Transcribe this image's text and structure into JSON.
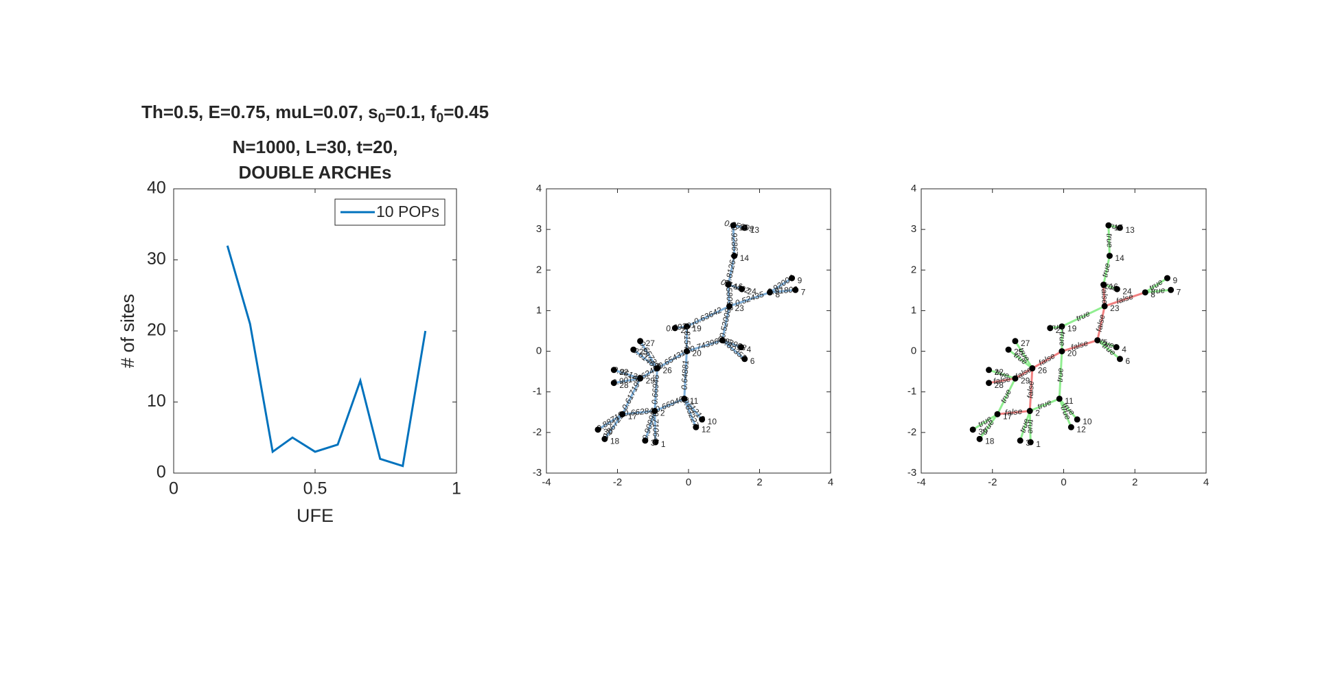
{
  "chart_data": [
    {
      "type": "line",
      "title": {
        "line1": [
          {
            "text": "Th=0.5, E=0.75, muL=0.07, s"
          },
          {
            "text": "0",
            "sub": true
          },
          {
            "text": "=0.1, f"
          },
          {
            "text": "0",
            "sub": true
          },
          {
            "text": "=0.45"
          }
        ],
        "line2": "N=1000, L=30, t=20,",
        "line3": "DOUBLE ARCHEs"
      },
      "x_label": "UFE",
      "y_label": "# of sites",
      "x": [
        0.19,
        0.27,
        0.35,
        0.42,
        0.5,
        0.58,
        0.66,
        0.73,
        0.81,
        0.89
      ],
      "series": [
        {
          "name": "10 POPs",
          "color": "#0072bd",
          "values": [
            32,
            21,
            3,
            5,
            3,
            4,
            13,
            2,
            1,
            20
          ]
        }
      ],
      "xlim": [
        0,
        1
      ],
      "xticks": [
        0,
        0.5,
        1
      ],
      "ylim": [
        0,
        40
      ],
      "yticks": [
        0,
        10,
        20,
        30,
        40
      ],
      "legend": "top-right"
    },
    {
      "type": "graph",
      "edge_color": "#7fb0da",
      "nodes": [
        1,
        2,
        3,
        4,
        5,
        6,
        7,
        8,
        9,
        10,
        11,
        12,
        13,
        14,
        15,
        16,
        17,
        18,
        19,
        20,
        21,
        22,
        23,
        24,
        25,
        26,
        27,
        28,
        29,
        30
      ],
      "x": [
        -0.93,
        -0.95,
        -1.22,
        1.48,
        0.95,
        1.58,
        3.01,
        2.29,
        2.91,
        0.38,
        -0.12,
        0.21,
        1.58,
        1.29,
        1.26,
        1.12,
        -1.86,
        -2.36,
        -0.05,
        -0.05,
        -0.38,
        -2.1,
        1.15,
        1.5,
        -1.55,
        -0.88,
        -1.36,
        -2.1,
        -1.36,
        -2.55
      ],
      "y": [
        -2.24,
        -1.47,
        -2.2,
        0.1,
        0.27,
        -0.19,
        1.51,
        1.45,
        1.8,
        -1.68,
        -1.17,
        -1.87,
        3.04,
        2.35,
        3.1,
        1.64,
        -1.55,
        -2.16,
        0.61,
        0,
        0.57,
        -0.46,
        1.11,
        1.53,
        0.04,
        -0.42,
        0.25,
        -0.78,
        -0.67,
        -1.93
      ],
      "edges": [
        [
          14,
          12
        ],
        [
          14,
          13
        ],
        [
          13,
          15
        ],
        [
          15,
          22
        ],
        [
          15,
          23
        ],
        [
          22,
          7
        ],
        [
          7,
          8
        ],
        [
          7,
          6
        ],
        [
          22,
          18
        ],
        [
          22,
          4
        ],
        [
          19,
          4
        ],
        [
          4,
          3
        ],
        [
          4,
          5
        ],
        [
          18,
          20
        ],
        [
          18,
          19
        ],
        [
          19,
          25
        ],
        [
          19,
          10
        ],
        [
          25,
          26
        ],
        [
          25,
          24
        ],
        [
          25,
          28
        ],
        [
          25,
          1
        ],
        [
          28,
          21
        ],
        [
          28,
          27
        ],
        [
          28,
          16
        ],
        [
          1,
          16
        ],
        [
          16,
          29
        ],
        [
          16,
          17
        ],
        [
          1,
          2
        ],
        [
          1,
          0
        ],
        [
          10,
          9
        ],
        [
          10,
          11
        ],
        [
          1,
          10
        ]
      ],
      "edge_labels": [
        0.65309,
        0.92867,
        0.81264,
        0.58093,
        0.64492,
        0.52435,
        0.92004,
        0.91806,
        0.63642,
        0.52008,
        0.74396,
        0.62903,
        0.60352,
        0.69201,
        0.81549,
        0.65431,
        0.64881,
        0.65739,
        0.61467,
        0.62409,
        0.66946,
        0.96128,
        0.90152,
        0.61719,
        0.66284,
        0.88713,
        0.86721,
        0.90998,
        0.71064,
        0.71213,
        0.63227,
        0.66946
      ],
      "xlim": [
        -4,
        4
      ],
      "xticks": [
        -4,
        -2,
        0,
        2,
        4
      ],
      "ylim": [
        -3,
        4
      ],
      "yticks": [
        -3,
        -2,
        -1,
        0,
        1,
        2,
        3,
        4
      ]
    },
    {
      "type": "graph",
      "edge_color": {
        "true": "#90ee90",
        "false": "#f08080"
      },
      "nodes": [
        1,
        2,
        3,
        4,
        5,
        6,
        7,
        8,
        9,
        10,
        11,
        12,
        13,
        14,
        15,
        16,
        17,
        18,
        19,
        20,
        21,
        22,
        23,
        24,
        25,
        26,
        27,
        28,
        29,
        30
      ],
      "x": [
        -0.93,
        -0.95,
        -1.22,
        1.48,
        0.95,
        1.58,
        3.01,
        2.29,
        2.91,
        0.38,
        -0.12,
        0.21,
        1.58,
        1.29,
        1.26,
        1.12,
        -1.86,
        -2.36,
        -0.05,
        -0.05,
        -0.38,
        -2.1,
        1.15,
        1.5,
        -1.55,
        -0.88,
        -1.36,
        -2.1,
        -1.36,
        -2.55
      ],
      "y": [
        -2.24,
        -1.47,
        -2.2,
        0.1,
        0.27,
        -0.19,
        1.51,
        1.45,
        1.8,
        -1.68,
        -1.17,
        -1.87,
        3.04,
        2.35,
        3.1,
        1.64,
        -1.55,
        -2.16,
        0.61,
        0,
        0.57,
        -0.46,
        1.11,
        1.53,
        0.04,
        -0.42,
        0.25,
        -0.78,
        -0.67,
        -1.93
      ],
      "edges": [
        [
          14,
          12
        ],
        [
          14,
          13
        ],
        [
          13,
          15
        ],
        [
          15,
          22
        ],
        [
          15,
          23
        ],
        [
          22,
          7
        ],
        [
          7,
          8
        ],
        [
          7,
          6
        ],
        [
          22,
          18
        ],
        [
          22,
          4
        ],
        [
          19,
          4
        ],
        [
          4,
          3
        ],
        [
          4,
          5
        ],
        [
          18,
          20
        ],
        [
          18,
          19
        ],
        [
          19,
          25
        ],
        [
          19,
          10
        ],
        [
          25,
          26
        ],
        [
          25,
          24
        ],
        [
          25,
          28
        ],
        [
          25,
          1
        ],
        [
          28,
          21
        ],
        [
          28,
          27
        ],
        [
          28,
          16
        ],
        [
          1,
          16
        ],
        [
          16,
          29
        ],
        [
          16,
          17
        ],
        [
          1,
          2
        ],
        [
          1,
          0
        ],
        [
          10,
          9
        ],
        [
          10,
          11
        ],
        [
          1,
          10
        ]
      ],
      "edge_labels": [
        "true",
        "true",
        "true",
        "false",
        "true",
        "false",
        "true",
        "true",
        "true",
        "false",
        "false",
        "true",
        "true",
        "true",
        "true",
        "false",
        "true",
        "true",
        "true",
        "false",
        "false",
        "true",
        "false",
        "true",
        "false",
        "true",
        "true",
        "true",
        "true",
        "true",
        "true",
        "true"
      ],
      "xlim": [
        -4,
        4
      ],
      "xticks": [
        -4,
        -2,
        0,
        2,
        4
      ],
      "ylim": [
        -3,
        4
      ],
      "yticks": [
        -3,
        -2,
        -1,
        0,
        1,
        2,
        3,
        4
      ]
    }
  ]
}
